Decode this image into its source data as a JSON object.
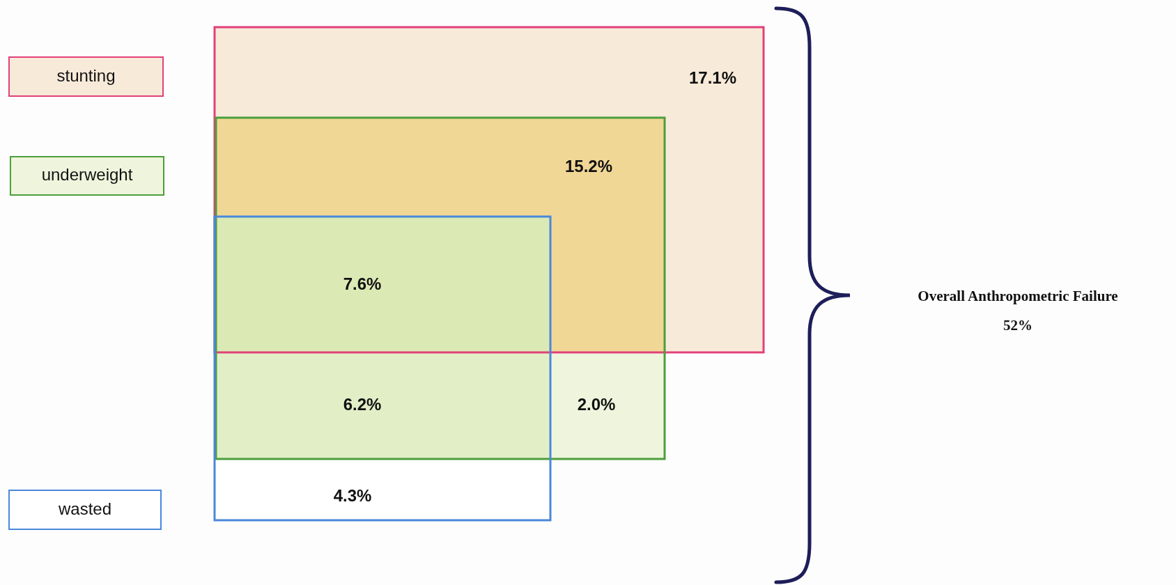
{
  "chart_data": {
    "type": "other",
    "categories": [
      null,
      null,
      null,
      null,
      null,
      null
    ],
    "values": [
      17.1,
      15.2,
      7.6,
      6.2,
      2.0,
      4.3
    ],
    "value_labels": [
      "17.1%",
      "15.2%",
      "7.6%",
      "6.2%",
      "2.0%",
      "4.3%"
    ],
    "colors": [
      "#f8ead9",
      "#f1d796",
      "#dbe9b4",
      "#e2efc6",
      "#eef5dc",
      "#ffffff"
    ],
    "annotations": [
      "stunting",
      "underweight",
      "wasted",
      "Overall Anthropometric Failure",
      "52%"
    ]
  }
}
